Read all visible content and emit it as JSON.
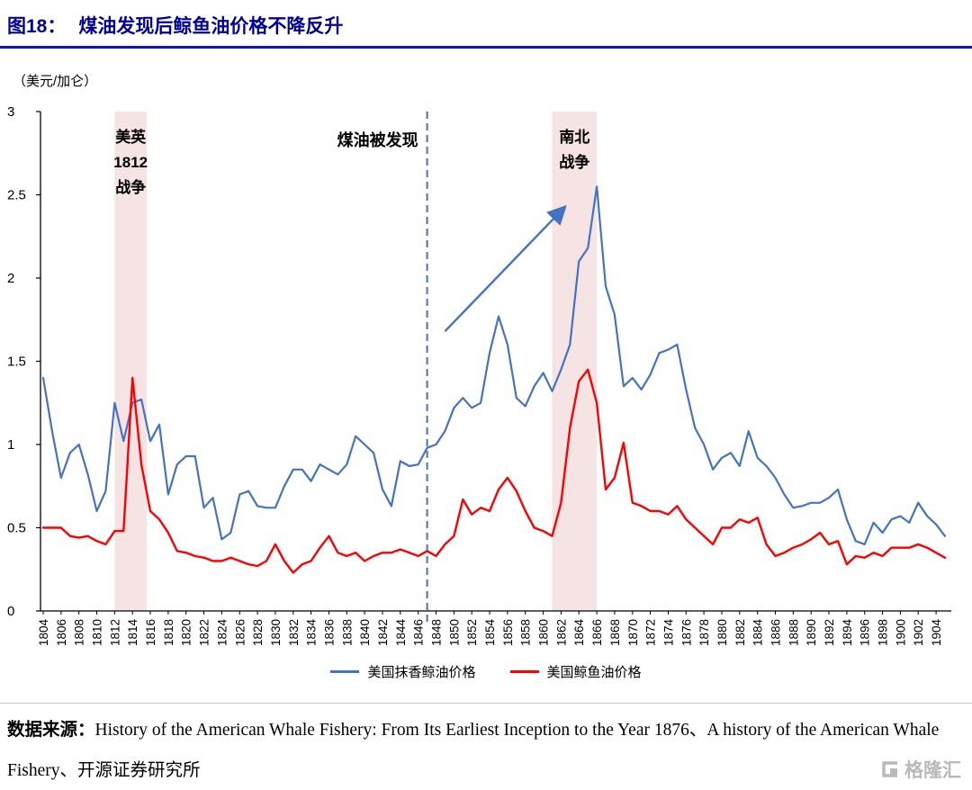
{
  "page": {
    "figure_label": "图18：",
    "title": "煤油发现后鲸鱼油价格不降反升",
    "unit_label": "（美元/加仑）",
    "source_prefix": "数据来源：",
    "source_text": "History of the American Whale Fishery: From Its Earliest Inception to the Year 1876、A history of the American Whale Fishery、开源证券研究所",
    "watermark": "格隆汇"
  },
  "colors": {
    "title": "#000099",
    "title_rule": "#1111cc",
    "series_blue": "#4472C4",
    "series_red": "#FF0000",
    "band": "#F6E3E3",
    "divider": "#cccccc",
    "watermark": "#b9b9b9",
    "axis": "#000000"
  },
  "chart_data": {
    "type": "line",
    "title": "煤油发现后鲸鱼油价格不降反升",
    "ylabel": "美元/加仑",
    "ylim": [
      0,
      3
    ],
    "yticks": [
      0,
      0.5,
      1,
      1.5,
      2,
      2.5,
      3
    ],
    "x_start": 1804,
    "x_end": 1905,
    "xtick_start": 1804,
    "xtick_end": 1904,
    "xtick_step": 2,
    "grid": false,
    "legend_position": "bottom",
    "series": [
      {
        "name": "美国抹香鲸油价格",
        "color": "#4472C4",
        "values": [
          1.4,
          1.08,
          0.8,
          0.95,
          1.0,
          0.82,
          0.6,
          0.72,
          1.25,
          1.02,
          1.25,
          1.27,
          1.02,
          1.12,
          0.7,
          0.88,
          0.93,
          0.93,
          0.62,
          0.68,
          0.43,
          0.47,
          0.7,
          0.72,
          0.63,
          0.62,
          0.62,
          0.75,
          0.85,
          0.85,
          0.78,
          0.88,
          0.85,
          0.82,
          0.88,
          1.05,
          1.0,
          0.95,
          0.73,
          0.63,
          0.9,
          0.87,
          0.88,
          0.98,
          1.0,
          1.08,
          1.22,
          1.28,
          1.22,
          1.25,
          1.55,
          1.77,
          1.6,
          1.28,
          1.23,
          1.35,
          1.43,
          1.32,
          1.45,
          1.6,
          2.1,
          2.18,
          2.55,
          1.95,
          1.78,
          1.35,
          1.4,
          1.33,
          1.42,
          1.55,
          1.57,
          1.6,
          1.33,
          1.1,
          1.0,
          0.85,
          0.92,
          0.95,
          0.87,
          1.08,
          0.92,
          0.87,
          0.8,
          0.7,
          0.62,
          0.63,
          0.65,
          0.65,
          0.68,
          0.73,
          0.55,
          0.42,
          0.4,
          0.53,
          0.47,
          0.55,
          0.57,
          0.53,
          0.65,
          0.57,
          0.52,
          0.45
        ]
      },
      {
        "name": "美国鲸鱼油价格",
        "color": "#FF0000",
        "values": [
          0.5,
          0.5,
          0.5,
          0.45,
          0.44,
          0.45,
          0.42,
          0.4,
          0.48,
          0.48,
          1.4,
          0.88,
          0.6,
          0.55,
          0.47,
          0.36,
          0.35,
          0.33,
          0.32,
          0.3,
          0.3,
          0.32,
          0.3,
          0.28,
          0.27,
          0.3,
          0.4,
          0.3,
          0.23,
          0.28,
          0.3,
          0.38,
          0.45,
          0.35,
          0.33,
          0.35,
          0.3,
          0.33,
          0.35,
          0.35,
          0.37,
          0.35,
          0.33,
          0.36,
          0.33,
          0.4,
          0.45,
          0.67,
          0.58,
          0.62,
          0.6,
          0.73,
          0.8,
          0.72,
          0.6,
          0.5,
          0.48,
          0.45,
          0.65,
          1.1,
          1.38,
          1.45,
          1.25,
          0.73,
          0.8,
          1.01,
          0.65,
          0.63,
          0.6,
          0.6,
          0.58,
          0.63,
          0.55,
          0.5,
          0.45,
          0.4,
          0.5,
          0.5,
          0.55,
          0.53,
          0.56,
          0.4,
          0.33,
          0.35,
          0.38,
          0.4,
          0.43,
          0.47,
          0.4,
          0.42,
          0.28,
          0.33,
          0.32,
          0.35,
          0.33,
          0.38,
          0.38,
          0.38,
          0.4,
          0.38,
          0.35,
          0.32
        ]
      }
    ],
    "bands": [
      {
        "label": "美英\n1812\n战争",
        "from": 1812,
        "to": 1815.6,
        "color": "#F6E3E3"
      },
      {
        "label": "南北\n战争",
        "from": 1861,
        "to": 1866,
        "color": "#F6E3E3"
      }
    ],
    "vline": {
      "x": 1847,
      "label": "煤油被发现",
      "color": "#4472C4"
    },
    "arrow": {
      "from": [
        1849,
        1.68
      ],
      "to": [
        1862.3,
        2.42
      ],
      "color": "#4472C4"
    }
  }
}
